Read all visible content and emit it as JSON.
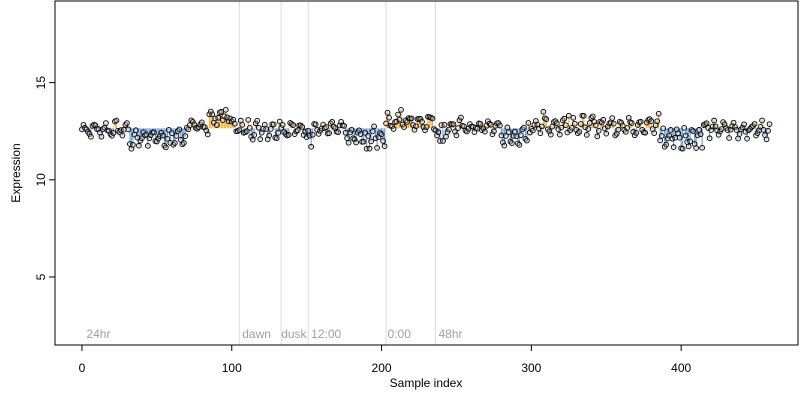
{
  "chart_data": {
    "type": "scatter",
    "title": "",
    "xlabel": "Sample index",
    "ylabel": "Expression",
    "xlim": [
      -18,
      478
    ],
    "ylim": [
      1.5,
      19.2
    ],
    "baseline": 12.65,
    "x_ticks": [
      0,
      100,
      200,
      300,
      400
    ],
    "y_ticks": [
      5,
      10,
      15
    ],
    "grid": false,
    "legend": "none",
    "colors": {
      "above": "#f0b040",
      "below": "#6a9bd8",
      "point_fill": "#c0c0c0",
      "point_stroke": "#000000",
      "divider": "#dcdcdc",
      "region_label": "#a0a0a0"
    },
    "dividers": [
      105,
      133,
      151,
      203,
      236
    ],
    "region_labels": [
      {
        "x": 3,
        "text": "24hr"
      },
      {
        "x": 107,
        "text": "dawn"
      },
      {
        "x": 133,
        "text": "dusk"
      },
      {
        "x": 153,
        "text": "12:00"
      },
      {
        "x": 204,
        "text": "0:00"
      },
      {
        "x": 238,
        "text": "48hr"
      }
    ],
    "segments": [
      {
        "x0": 0,
        "x1": 32,
        "base": 12.6,
        "amp": 0.25,
        "freq": 0.9
      },
      {
        "x0": 32,
        "x1": 70,
        "base": 12.2,
        "amp": 0.35,
        "freq": 1.1
      },
      {
        "x0": 70,
        "x1": 85,
        "base": 12.7,
        "amp": 0.25,
        "freq": 0.8
      },
      {
        "x0": 85,
        "x1": 98,
        "base": 13.2,
        "amp": 0.25,
        "freq": 0.9
      },
      {
        "x0": 98,
        "x1": 105,
        "base": 12.9,
        "amp": 0.3,
        "freq": 0.9
      },
      {
        "x0": 105,
        "x1": 133,
        "base": 12.6,
        "amp": 0.35,
        "freq": 1.2
      },
      {
        "x0": 133,
        "x1": 151,
        "base": 12.6,
        "amp": 0.3,
        "freq": 1.0
      },
      {
        "x0": 151,
        "x1": 175,
        "base": 12.6,
        "amp": 0.3,
        "freq": 1.1
      },
      {
        "x0": 175,
        "x1": 203,
        "base": 12.2,
        "amp": 0.4,
        "freq": 1.3
      },
      {
        "x0": 203,
        "x1": 236,
        "base": 13.0,
        "amp": 0.25,
        "freq": 0.9
      },
      {
        "x0": 236,
        "x1": 280,
        "base": 12.7,
        "amp": 0.3,
        "freq": 1.0
      },
      {
        "x0": 280,
        "x1": 298,
        "base": 12.2,
        "amp": 0.35,
        "freq": 1.2
      },
      {
        "x0": 298,
        "x1": 385,
        "base": 12.8,
        "amp": 0.35,
        "freq": 1.0
      },
      {
        "x0": 385,
        "x1": 415,
        "base": 12.2,
        "amp": 0.4,
        "freq": 1.3
      },
      {
        "x0": 415,
        "x1": 460,
        "base": 12.6,
        "amp": 0.3,
        "freq": 1.0
      }
    ],
    "outliers": [
      {
        "x": 33,
        "y": 11.6
      },
      {
        "x": 34,
        "y": 11.8
      },
      {
        "x": 59,
        "y": 11.9
      },
      {
        "x": 93,
        "y": 13.5
      },
      {
        "x": 96,
        "y": 13.6
      },
      {
        "x": 153,
        "y": 11.7
      },
      {
        "x": 190,
        "y": 11.6
      },
      {
        "x": 213,
        "y": 13.6
      },
      {
        "x": 239,
        "y": 12.0
      },
      {
        "x": 241,
        "y": 12.0
      },
      {
        "x": 308,
        "y": 13.5
      },
      {
        "x": 325,
        "y": 13.3
      },
      {
        "x": 385,
        "y": 13.4
      },
      {
        "x": 389,
        "y": 11.7
      },
      {
        "x": 401,
        "y": 11.6
      }
    ]
  }
}
